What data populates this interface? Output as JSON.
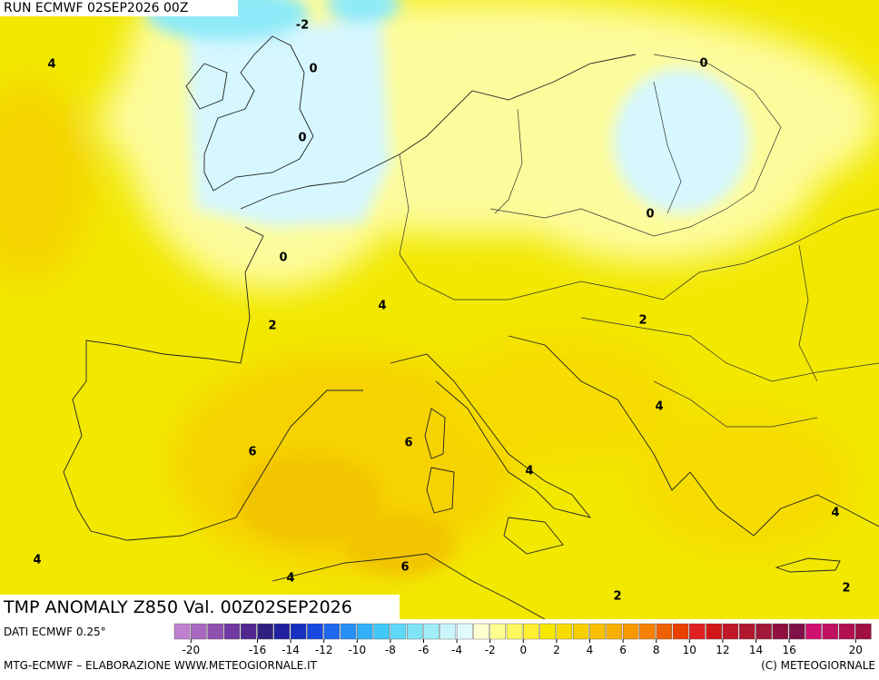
{
  "header": {
    "run": "RUN ECMWF 02SEP2026 00Z"
  },
  "map": {
    "contour_labels": [
      "-2",
      "0",
      "4",
      "0",
      "0",
      "0",
      "0",
      "4",
      "2",
      "2",
      "4",
      "6",
      "6",
      "4",
      "4",
      "4",
      "4",
      "6",
      "2",
      "2"
    ]
  },
  "title": "TMP ANOMALY Z850 Val. 00Z02SEP2026",
  "footer": {
    "source": "DATI ECMWF 0.25°",
    "credit": "MTG-ECMWF – ELABORAZIONE WWW.METEOGIORNALE.IT",
    "copyright": "(C) METEOGIORNALE"
  },
  "colorbar": {
    "ticks": [
      -20,
      -16,
      -14,
      -12,
      -10,
      -8,
      -6,
      -4,
      -2,
      0,
      2,
      4,
      6,
      8,
      10,
      12,
      14,
      16,
      20
    ]
  }
}
